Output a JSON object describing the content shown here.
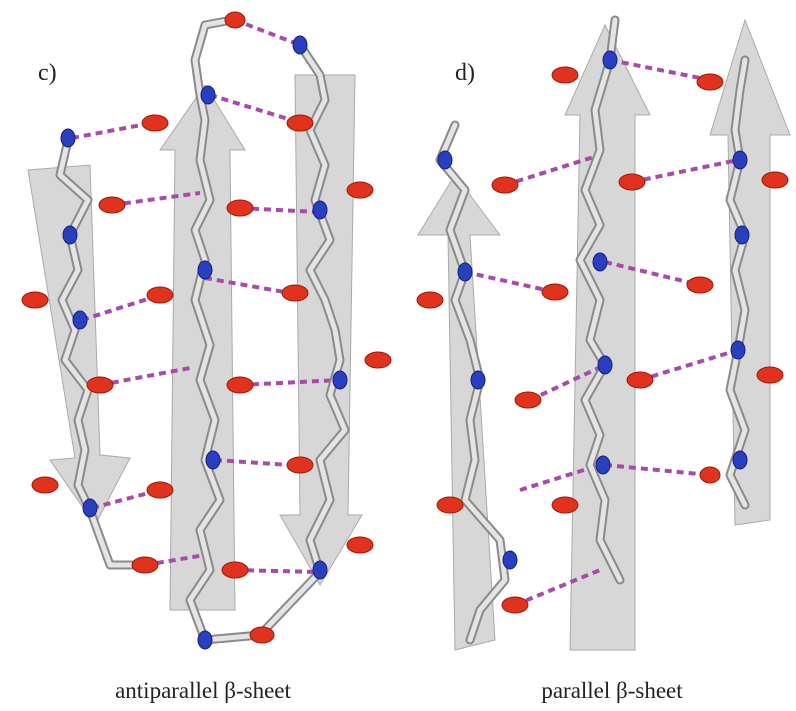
{
  "panels": [
    {
      "label": "c)",
      "caption": "antiparallel β-sheet"
    },
    {
      "label": "d)",
      "caption": "parallel β-sheet"
    }
  ]
}
